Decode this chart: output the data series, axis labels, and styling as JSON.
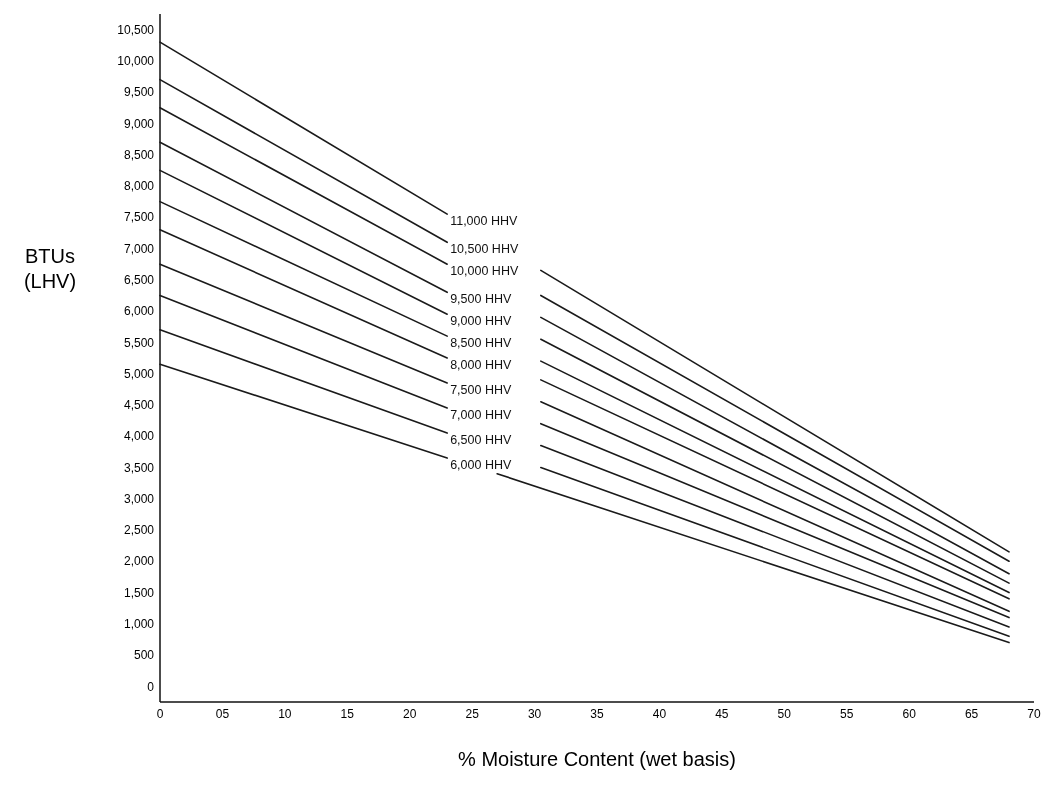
{
  "chart_data": {
    "type": "line",
    "xlabel": "% Moisture Content (wet basis)",
    "ylabel": "BTUs (LHV)",
    "xlim": [
      0,
      70
    ],
    "xticks": [
      0,
      {
        "value": 5,
        "label": "05"
      },
      10,
      15,
      20,
      25,
      30,
      35,
      40,
      45,
      50,
      55,
      60,
      65,
      70
    ],
    "ylim": [
      -250,
      10750
    ],
    "yticks": [
      0,
      500,
      {
        "value": 1000,
        "label": "1,000"
      },
      {
        "value": 1500,
        "label": "1,500"
      },
      {
        "value": 2000,
        "label": "2,000"
      },
      {
        "value": 2500,
        "label": "2,500"
      },
      {
        "value": 3000,
        "label": "3,000"
      },
      {
        "value": 3500,
        "label": "3,500"
      },
      {
        "value": 4000,
        "label": "4,000"
      },
      {
        "value": 4500,
        "label": "4,500"
      },
      {
        "value": 5000,
        "label": "5,000"
      },
      {
        "value": 5500,
        "label": "5,500"
      },
      {
        "value": 6000,
        "label": "6,000"
      },
      {
        "value": 6500,
        "label": "6,500"
      },
      {
        "value": 7000,
        "label": "7,000"
      },
      {
        "value": 7500,
        "label": "7,500"
      },
      {
        "value": 8000,
        "label": "8,000"
      },
      {
        "value": 8500,
        "label": "8,500"
      },
      {
        "value": 9000,
        "label": "9,000"
      },
      {
        "value": 9500,
        "label": "9,500"
      },
      {
        "value": 10000,
        "label": "10,000"
      },
      {
        "value": 10500,
        "label": "10,500"
      }
    ],
    "grid": false,
    "legend": false,
    "marker": "none",
    "line_style": "solid",
    "series": [
      {
        "name": "11,000 HHV",
        "color": "#1a1a1a",
        "x": [
          0,
          23,
          26.75,
          30.5,
          68
        ],
        "values": [
          10300,
          7550,
          null,
          6650,
          2150
        ]
      },
      {
        "name": "10,500 HHV",
        "color": "#1a1a1a",
        "x": [
          0,
          23,
          26.75,
          30.5,
          68
        ],
        "values": [
          9700,
          7100,
          null,
          6250,
          2000
        ]
      },
      {
        "name": "10,000 HHV",
        "color": "#1a1a1a",
        "x": [
          0,
          23,
          26.75,
          30.5,
          68
        ],
        "values": [
          9250,
          6750,
          null,
          5900,
          1800
        ]
      },
      {
        "name": "9,500 HHV",
        "color": "#1a1a1a",
        "x": [
          0,
          23,
          26.75,
          30.5,
          68
        ],
        "values": [
          8700,
          6300,
          null,
          5550,
          1650
        ]
      },
      {
        "name": "9,000 HHV",
        "color": "#1a1a1a",
        "x": [
          0,
          23,
          26.75,
          30.5,
          68
        ],
        "values": [
          8250,
          5950,
          null,
          5200,
          1500
        ]
      },
      {
        "name": "8,500 HHV",
        "color": "#1a1a1a",
        "x": [
          0,
          23,
          26.75,
          30.5,
          68
        ],
        "values": [
          7750,
          5600,
          null,
          4900,
          1400
        ]
      },
      {
        "name": "8,000 HHV",
        "color": "#1a1a1a",
        "x": [
          0,
          23,
          26.75,
          30.5,
          68
        ],
        "values": [
          7300,
          5250,
          null,
          4550,
          1200
        ]
      },
      {
        "name": "7,500 HHV",
        "color": "#1a1a1a",
        "x": [
          0,
          23,
          26.75,
          30.5,
          68
        ],
        "values": [
          6750,
          4850,
          null,
          4200,
          1100
        ]
      },
      {
        "name": "7,000 HHV",
        "color": "#1a1a1a",
        "x": [
          0,
          23,
          26.75,
          30.5,
          68
        ],
        "values": [
          6250,
          4450,
          null,
          3850,
          950
        ]
      },
      {
        "name": "6,500 HHV",
        "color": "#1a1a1a",
        "x": [
          0,
          23,
          26.75,
          30.5,
          68
        ],
        "values": [
          5700,
          4050,
          null,
          3500,
          800
        ]
      },
      {
        "name": "6,000 HHV",
        "color": "#1a1a1a",
        "x": [
          0,
          23,
          25,
          27,
          68
        ],
        "values": [
          5150,
          3650,
          null,
          3400,
          700
        ]
      }
    ]
  }
}
